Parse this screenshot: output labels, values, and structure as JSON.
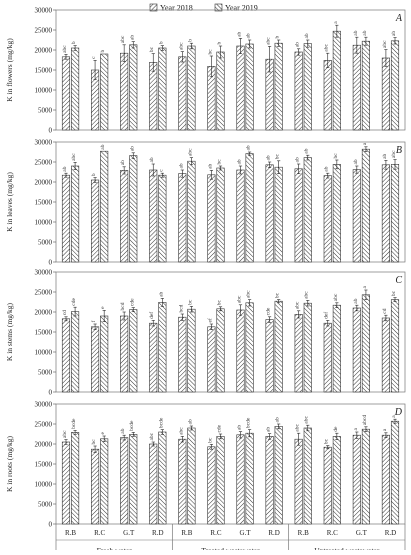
{
  "chart_data": {
    "type": "bar",
    "legend": {
      "placement": "top-center",
      "entries": [
        "Year 2018",
        "Year 2019"
      ]
    },
    "categories": [
      "R.B",
      "R.C",
      "G.T",
      "R.D",
      "R.B",
      "R.C",
      "G.T",
      "R.D",
      "R.B",
      "R.C",
      "G.T",
      "R.D"
    ],
    "groups": [
      "Fresh water",
      "Treated wastewater",
      "Untreated wastewater"
    ],
    "yticks": [
      "0",
      "5000",
      "10000",
      "15000",
      "20000",
      "25000",
      "30000"
    ],
    "ylim": [
      0,
      30000
    ],
    "panels": [
      {
        "letter": "A",
        "ylabel": "K in flowers (mg/kg)",
        "series": [
          {
            "name": "Year 2018",
            "values": [
              18300,
              15000,
              19200,
              16900,
              18300,
              15900,
              21000,
              17700,
              19500,
              17400,
              21200,
              18000
            ],
            "errors": [
              600,
              2400,
              2100,
              2200,
              1300,
              2600,
              1900,
              3200,
              800,
              1800,
              2000,
              2100
            ],
            "labels": [
              "abc",
              "c",
              "abc",
              "bc",
              "abc",
              "bc",
              "ab",
              "abc",
              "ab",
              "abc",
              "ab",
              "abc"
            ]
          },
          {
            "name": "Year 2019",
            "values": [
              20500,
              19000,
              21300,
              20500,
              21000,
              19500,
              21500,
              21700,
              21600,
              24700,
              22200,
              22300
            ],
            "errors": [
              600,
              0,
              800,
              600,
              700,
              1500,
              1000,
              800,
              900,
              1500,
              1000,
              800
            ],
            "labels": [
              "b",
              "b",
              "ab",
              "b",
              "b",
              "b",
              "ab",
              "b",
              "ab",
              "a",
              "ab",
              "ab"
            ]
          }
        ]
      },
      {
        "letter": "B",
        "ylabel": "K in leaves (mg/kg)",
        "series": [
          {
            "name": "Year 2018",
            "values": [
              21700,
              20500,
              22900,
              23000,
              22100,
              21800,
              23000,
              24300,
              23300,
              21600,
              23100,
              24300
            ],
            "errors": [
              500,
              600,
              900,
              1500,
              900,
              1100,
              1000,
              700,
              1200,
              600,
              900,
              1100
            ],
            "labels": [
              "ab",
              "b",
              "ab",
              "ab",
              "ab",
              "ab",
              "ab",
              "ab",
              "ab",
              "ab",
              "ab",
              "ab"
            ]
          },
          {
            "name": "Year 2019",
            "values": [
              24000,
              27700,
              26600,
              21700,
              25200,
              23500,
              27100,
              23700,
              26100,
              24400,
              28200,
              24400
            ],
            "errors": [
              900,
              0,
              700,
              500,
              900,
              500,
              400,
              1600,
              600,
              1100,
              600,
              1200
            ],
            "labels": [
              "abc",
              "ab",
              "ab",
              "c",
              "abc",
              "bc",
              "ab",
              "bc",
              "ab",
              "bc",
              "a",
              "abc"
            ]
          }
        ]
      },
      {
        "letter": "C",
        "ylabel": "K in stems (mg/kg)",
        "series": [
          {
            "name": "Year 2018",
            "values": [
              18300,
              16300,
              19000,
              17200,
              18700,
              16300,
              20500,
              18100,
              19400,
              17200,
              21000,
              18500
            ],
            "errors": [
              500,
              700,
              1000,
              700,
              800,
              700,
              1300,
              700,
              900,
              700,
              700,
              700
            ],
            "labels": [
              "cd",
              "f",
              "bcd",
              "def",
              "bcd",
              "ef",
              "abc",
              "cde",
              "abc",
              "def",
              "ab",
              "cd"
            ]
          },
          {
            "name": "Year 2019",
            "values": [
              20100,
              19000,
              20600,
              22400,
              20700,
              20800,
              22300,
              22700,
              22200,
              21700,
              24300,
              23100
            ],
            "errors": [
              1100,
              1400,
              500,
              1000,
              700,
              500,
              800,
              400,
              700,
              600,
              1200,
              500
            ],
            "labels": [
              "cde",
              "e",
              "cde",
              "ab",
              "bc",
              "bc",
              "abc",
              "bc",
              "abc",
              "abc",
              "a",
              "bc"
            ]
          }
        ]
      },
      {
        "letter": "D",
        "ylabel": "K in roots (mg/kg)",
        "series": [
          {
            "name": "Year 2018",
            "values": [
              20500,
              18700,
              21600,
              20000,
              21200,
              19300,
              22300,
              21900,
              21200,
              19200,
              22200,
              22200
            ],
            "errors": [
              600,
              800,
              600,
              500,
              700,
              600,
              800,
              700,
              1500,
              400,
              800,
              600
            ],
            "labels": [
              "abc",
              "bc",
              "ab",
              "abc",
              "abc",
              "bc",
              "ab",
              "ab",
              "abc",
              "bc",
              "a",
              "a"
            ]
          },
          {
            "name": "Year 2019",
            "values": [
              22900,
              21300,
              22400,
              23000,
              24000,
              21900,
              22700,
              24400,
              24000,
              21900,
              23700,
              25700
            ],
            "errors": [
              500,
              700,
              500,
              600,
              500,
              600,
              900,
              600,
              700,
              800,
              600,
              500
            ],
            "labels": [
              "bcde",
              "e",
              "bcde",
              "bcde",
              "ab",
              "cde",
              "bcde",
              "ab",
              "abc",
              "de",
              "abcd",
              "a"
            ]
          }
        ]
      }
    ]
  }
}
